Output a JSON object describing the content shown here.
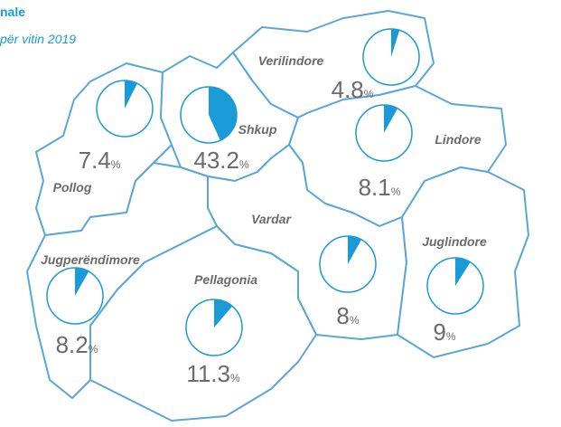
{
  "title": "nale",
  "subtitle": "për vitin 2019",
  "unit": "%",
  "regions": [
    {
      "name": "Verilindore",
      "value": 4.8
    },
    {
      "name": "Shkup",
      "value": 43.2
    },
    {
      "name": "Pollog",
      "value": 7.4
    },
    {
      "name": "Lindore",
      "value": 8.1
    },
    {
      "name": "Vardar",
      "value": 8
    },
    {
      "name": "Juglindore",
      "value": 9
    },
    {
      "name": "Jugperëndimore",
      "value": 8.2
    },
    {
      "name": "Pellagonia",
      "value": 11.3
    }
  ]
}
